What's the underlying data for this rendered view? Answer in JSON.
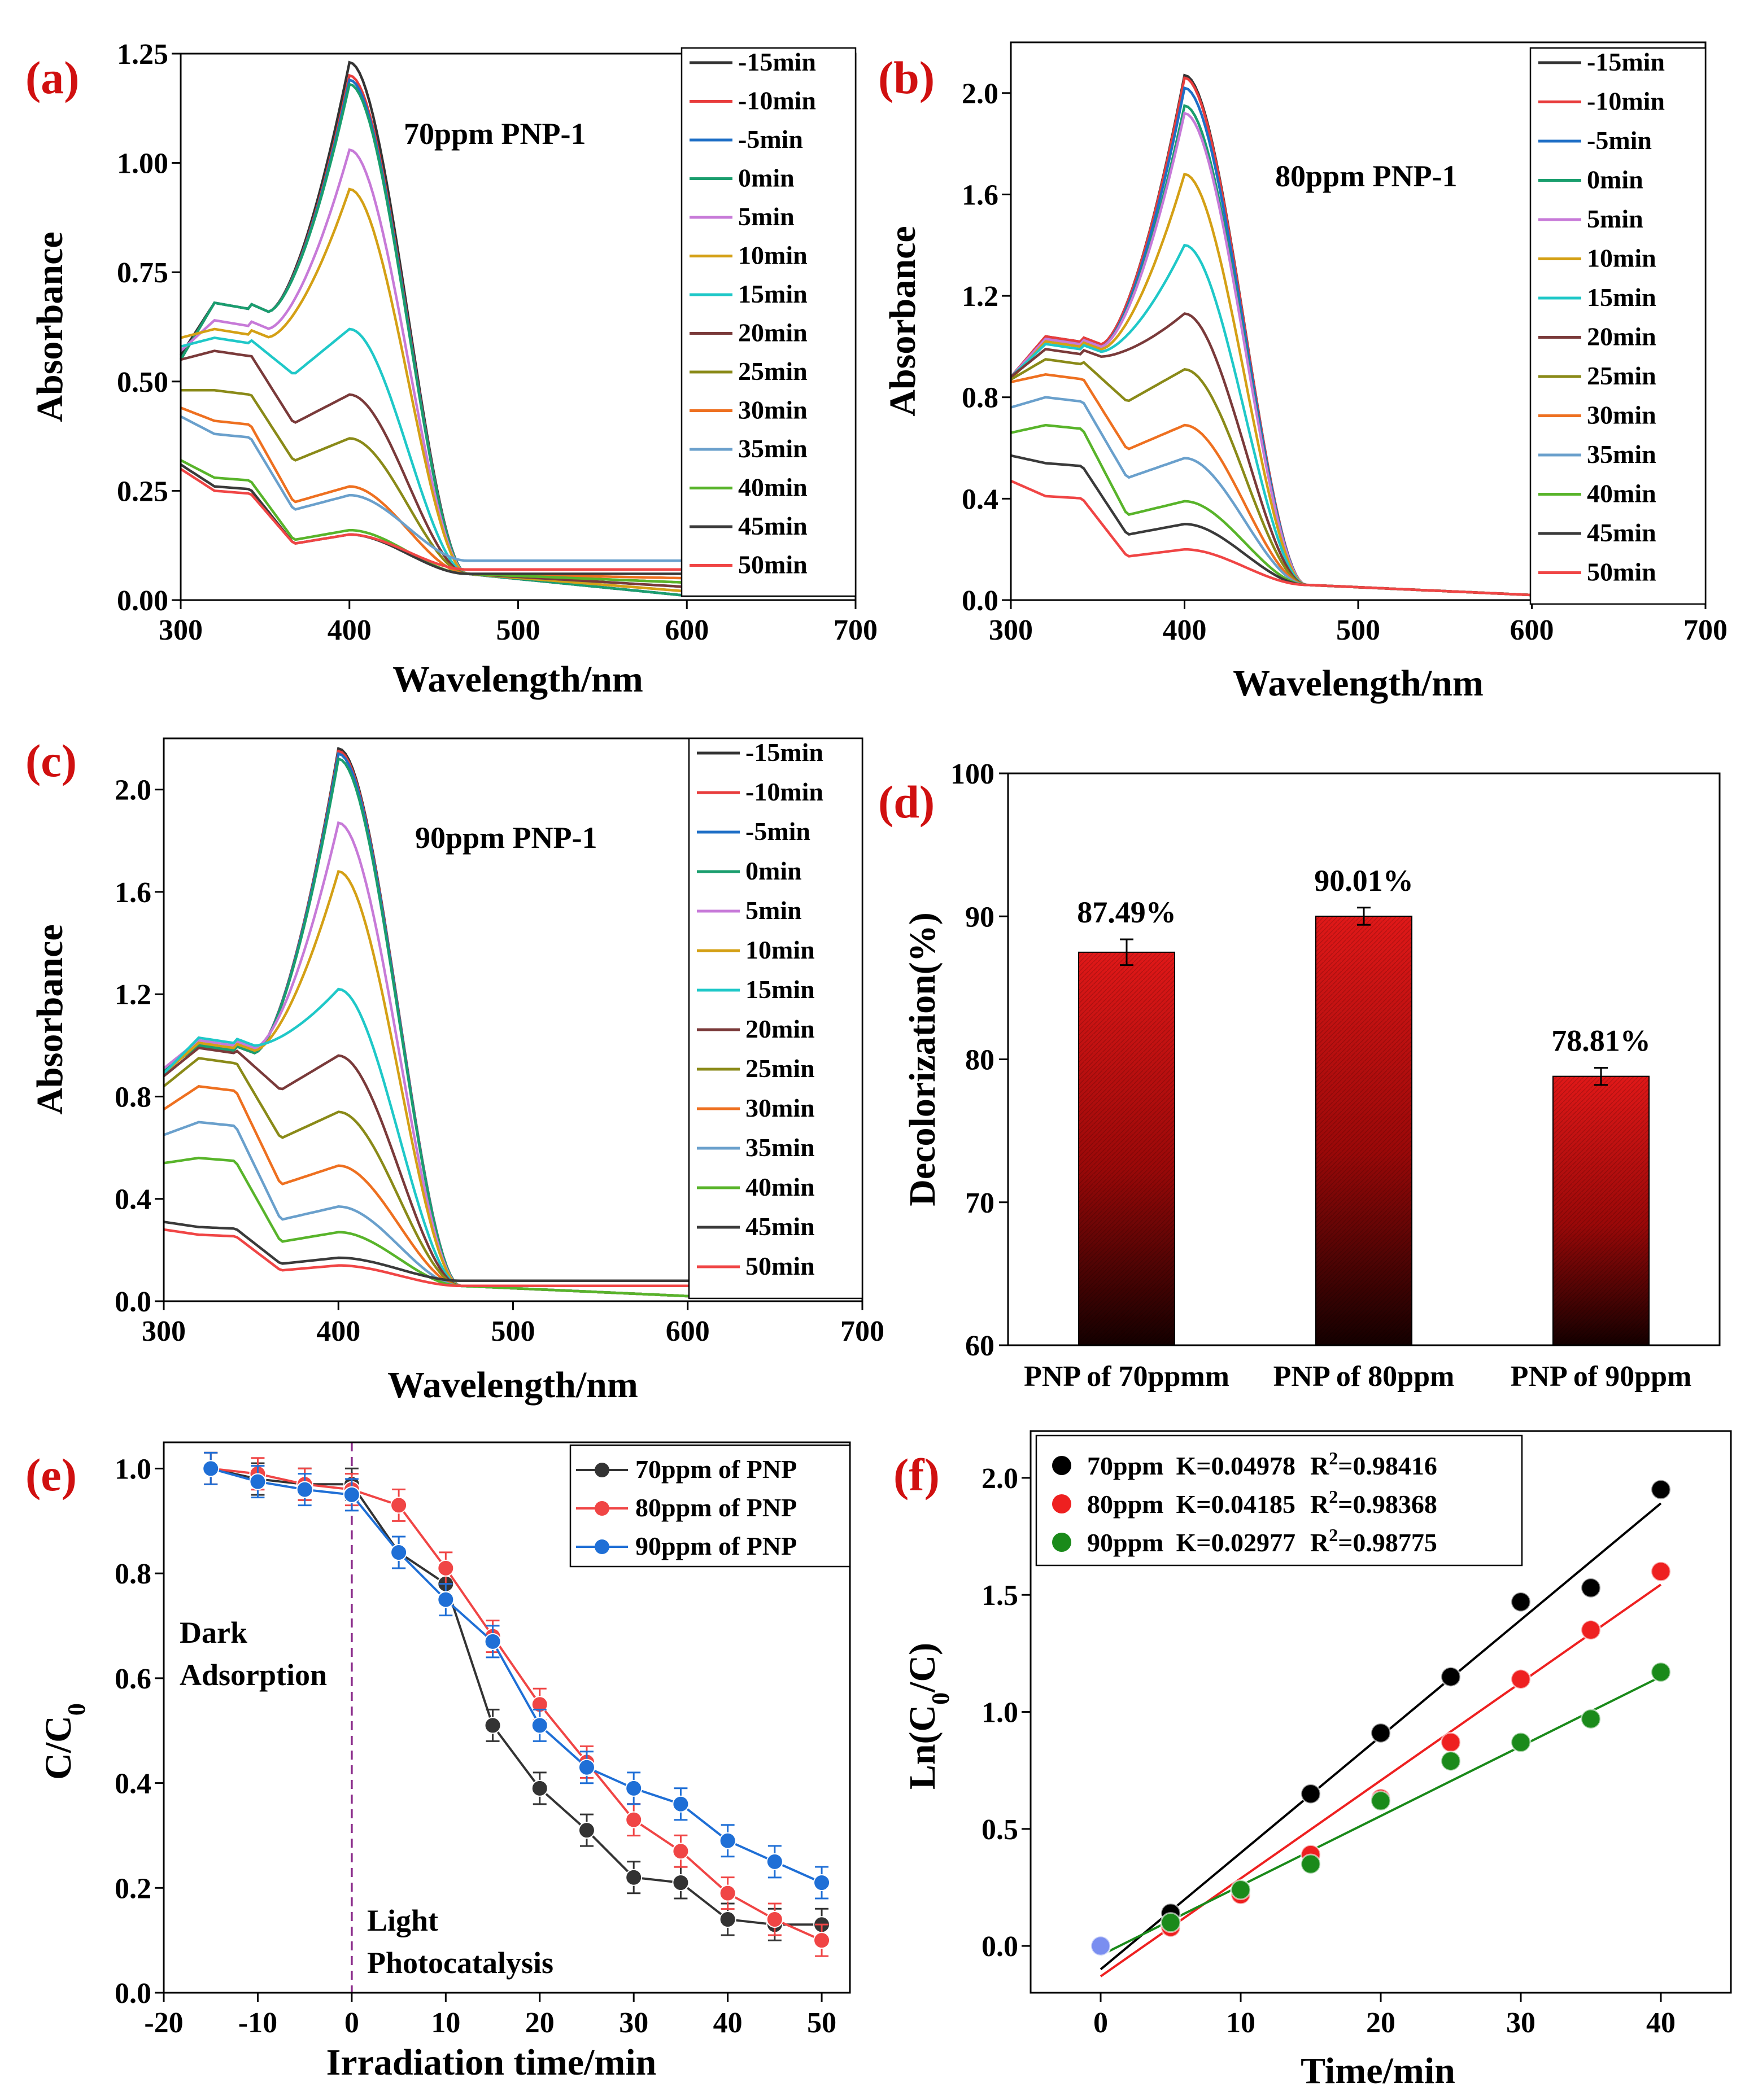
{
  "chart_data": [
    {
      "id": "a",
      "type": "line",
      "panel_label": "(a)",
      "annotation": "70ppm PNP-1",
      "xlabel": "Wavelength/nm",
      "ylabel": "Absorbance",
      "xlim": [
        300,
        700
      ],
      "ylim": [
        0,
        1.25
      ],
      "xticks": [
        300,
        400,
        500,
        600,
        700
      ],
      "yticks": [
        0.0,
        0.25,
        0.5,
        0.75,
        1.0,
        1.25
      ],
      "ytick_labels": [
        "0.00",
        "0.25",
        "0.50",
        "0.75",
        "1.00",
        "1.25"
      ],
      "legend": [
        "-15min",
        "-10min",
        "-5min",
        "0min",
        "5min",
        "10min",
        "15min",
        "20min",
        "25min",
        "30min",
        "35min",
        "40min",
        "45min",
        "50min"
      ],
      "series": [
        {
          "name": "-15min",
          "color": "#333333",
          "a300": 0.56,
          "s320": 0.68,
          "peak": 1.23,
          "tail": 0.01
        },
        {
          "name": "-10min",
          "color": "#e83c3c",
          "a300": 0.55,
          "s320": 0.68,
          "peak": 1.2,
          "tail": 0.01
        },
        {
          "name": "-5min",
          "color": "#1f6fc6",
          "a300": 0.55,
          "s320": 0.68,
          "peak": 1.19,
          "tail": 0.01
        },
        {
          "name": "0min",
          "color": "#1a9e6e",
          "a300": 0.55,
          "s320": 0.68,
          "peak": 1.18,
          "tail": 0.01
        },
        {
          "name": "5min",
          "color": "#c77ad8",
          "a300": 0.57,
          "s320": 0.64,
          "peak": 1.03,
          "tail": 0.02
        },
        {
          "name": "10min",
          "color": "#d4a015",
          "a300": 0.6,
          "s320": 0.62,
          "peak": 0.94,
          "tail": 0.02
        },
        {
          "name": "15min",
          "color": "#1fc8c8",
          "a300": 0.58,
          "s320": 0.6,
          "peak": 0.62,
          "tail": 0.03
        },
        {
          "name": "20min",
          "color": "#7a3a3a",
          "a300": 0.55,
          "s320": 0.57,
          "peak": 0.47,
          "tail": 0.03
        },
        {
          "name": "25min",
          "color": "#8a8a18",
          "a300": 0.48,
          "s320": 0.48,
          "peak": 0.37,
          "tail": 0.04
        },
        {
          "name": "30min",
          "color": "#ee7020",
          "a300": 0.44,
          "s320": 0.41,
          "peak": 0.26,
          "tail": 0.05
        },
        {
          "name": "35min",
          "color": "#6aa0cc",
          "a300": 0.42,
          "s320": 0.38,
          "peak": 0.24,
          "tail": 0.09
        },
        {
          "name": "40min",
          "color": "#58b42a",
          "a300": 0.32,
          "s320": 0.28,
          "peak": 0.16,
          "tail": 0.04
        },
        {
          "name": "45min",
          "color": "#3a3a3a",
          "a300": 0.31,
          "s320": 0.26,
          "peak": 0.15,
          "tail": 0.06
        },
        {
          "name": "50min",
          "color": "#f04545",
          "a300": 0.3,
          "s320": 0.25,
          "peak": 0.15,
          "tail": 0.07
        }
      ]
    },
    {
      "id": "b",
      "type": "line",
      "panel_label": "(b)",
      "annotation": "80ppm PNP-1",
      "xlabel": "Wavelength/nm",
      "ylabel": "Absorbance",
      "xlim": [
        300,
        700
      ],
      "ylim": [
        0,
        2.2
      ],
      "xticks": [
        300,
        400,
        500,
        600,
        700
      ],
      "yticks": [
        0.0,
        0.4,
        0.8,
        1.2,
        1.6,
        2.0
      ],
      "ytick_labels": [
        "0.0",
        "0.4",
        "0.8",
        "1.2",
        "1.6",
        "2.0"
      ],
      "legend": [
        "-15min",
        "-10min",
        "-5min",
        "0min",
        "5min",
        "10min",
        "15min",
        "20min",
        "25min",
        "30min",
        "35min",
        "40min",
        "45min",
        "50min"
      ],
      "series": [
        {
          "name": "-15min",
          "color": "#333333",
          "a300": 0.88,
          "s320": 1.04,
          "peak": 2.07,
          "tail": 0.02
        },
        {
          "name": "-10min",
          "color": "#e83c3c",
          "a300": 0.88,
          "s320": 1.04,
          "peak": 2.06,
          "tail": 0.02
        },
        {
          "name": "-5min",
          "color": "#1f6fc6",
          "a300": 0.88,
          "s320": 1.03,
          "peak": 2.02,
          "tail": 0.02
        },
        {
          "name": "0min",
          "color": "#1a9e6e",
          "a300": 0.87,
          "s320": 1.03,
          "peak": 1.95,
          "tail": 0.02
        },
        {
          "name": "5min",
          "color": "#c77ad8",
          "a300": 0.88,
          "s320": 1.03,
          "peak": 1.92,
          "tail": 0.02
        },
        {
          "name": "10min",
          "color": "#d4a015",
          "a300": 0.87,
          "s320": 1.02,
          "peak": 1.68,
          "tail": 0.02
        },
        {
          "name": "15min",
          "color": "#1fc8c8",
          "a300": 0.88,
          "s320": 1.01,
          "peak": 1.4,
          "tail": 0.02
        },
        {
          "name": "20min",
          "color": "#7a3a3a",
          "a300": 0.88,
          "s320": 0.99,
          "peak": 1.13,
          "tail": 0.02
        },
        {
          "name": "25min",
          "color": "#8a8a18",
          "a300": 0.87,
          "s320": 0.95,
          "peak": 0.91,
          "tail": 0.02
        },
        {
          "name": "30min",
          "color": "#ee7020",
          "a300": 0.86,
          "s320": 0.89,
          "peak": 0.69,
          "tail": 0.02
        },
        {
          "name": "35min",
          "color": "#6aa0cc",
          "a300": 0.76,
          "s320": 0.8,
          "peak": 0.56,
          "tail": 0.02
        },
        {
          "name": "40min",
          "color": "#58b42a",
          "a300": 0.66,
          "s320": 0.69,
          "peak": 0.39,
          "tail": 0.02
        },
        {
          "name": "45min",
          "color": "#3a3a3a",
          "a300": 0.57,
          "s320": 0.54,
          "peak": 0.3,
          "tail": 0.02
        },
        {
          "name": "50min",
          "color": "#f04545",
          "a300": 0.47,
          "s320": 0.41,
          "peak": 0.2,
          "tail": 0.02
        }
      ]
    },
    {
      "id": "c",
      "type": "line",
      "panel_label": "(c)",
      "annotation": "90ppm PNP-1",
      "xlabel": "Wavelength/nm",
      "ylabel": "Absorbance",
      "xlim": [
        300,
        700
      ],
      "ylim": [
        0,
        2.2
      ],
      "xticks": [
        300,
        400,
        500,
        600,
        700
      ],
      "yticks": [
        0.0,
        0.4,
        0.8,
        1.2,
        1.6,
        2.0
      ],
      "ytick_labels": [
        "0.0",
        "0.4",
        "0.8",
        "1.2",
        "1.6",
        "2.0"
      ],
      "legend": [
        "-15min",
        "-10min",
        "-5min",
        "0min",
        "5min",
        "10min",
        "15min",
        "20min",
        "25min",
        "30min",
        "35min",
        "40min",
        "45min",
        "50min"
      ],
      "series": [
        {
          "name": "-15min",
          "color": "#333333",
          "a300": 0.9,
          "s320": 1.0,
          "peak": 2.16,
          "tail": 0.02
        },
        {
          "name": "-10min",
          "color": "#e83c3c",
          "a300": 0.9,
          "s320": 1.0,
          "peak": 2.15,
          "tail": 0.02
        },
        {
          "name": "-5min",
          "color": "#1f6fc6",
          "a300": 0.9,
          "s320": 1.0,
          "peak": 2.14,
          "tail": 0.02
        },
        {
          "name": "0min",
          "color": "#1a9e6e",
          "a300": 0.9,
          "s320": 1.0,
          "peak": 2.12,
          "tail": 0.02
        },
        {
          "name": "5min",
          "color": "#c77ad8",
          "a300": 0.91,
          "s320": 1.02,
          "peak": 1.87,
          "tail": 0.02
        },
        {
          "name": "10min",
          "color": "#d4a015",
          "a300": 0.89,
          "s320": 1.01,
          "peak": 1.68,
          "tail": 0.02
        },
        {
          "name": "15min",
          "color": "#1fc8c8",
          "a300": 0.89,
          "s320": 1.03,
          "peak": 1.22,
          "tail": 0.02
        },
        {
          "name": "20min",
          "color": "#7a3a3a",
          "a300": 0.88,
          "s320": 0.99,
          "peak": 0.96,
          "tail": 0.02
        },
        {
          "name": "25min",
          "color": "#8a8a18",
          "a300": 0.84,
          "s320": 0.95,
          "peak": 0.74,
          "tail": 0.02
        },
        {
          "name": "30min",
          "color": "#ee7020",
          "a300": 0.75,
          "s320": 0.84,
          "peak": 0.53,
          "tail": 0.02
        },
        {
          "name": "35min",
          "color": "#6aa0cc",
          "a300": 0.65,
          "s320": 0.7,
          "peak": 0.37,
          "tail": 0.02
        },
        {
          "name": "40min",
          "color": "#58b42a",
          "a300": 0.54,
          "s320": 0.56,
          "peak": 0.27,
          "tail": 0.02
        },
        {
          "name": "45min",
          "color": "#3a3a3a",
          "a300": 0.31,
          "s320": 0.29,
          "peak": 0.17,
          "tail": 0.08
        },
        {
          "name": "50min",
          "color": "#f04545",
          "a300": 0.28,
          "s320": 0.26,
          "peak": 0.14,
          "tail": 0.06
        }
      ]
    },
    {
      "id": "d",
      "type": "bar",
      "panel_label": "(d)",
      "xlabel": "",
      "ylabel": "Decolorization(%)",
      "ylim": [
        60,
        100
      ],
      "yticks": [
        60,
        70,
        80,
        90,
        100
      ],
      "categories": [
        "PNP of 70ppmm",
        "PNP of  80ppm",
        "PNP of  90ppm"
      ],
      "values": [
        87.49,
        90.01,
        78.81
      ],
      "errors": [
        0.9,
        0.6,
        0.6
      ],
      "value_labels": [
        "87.49%",
        "90.01%",
        "78.81%"
      ],
      "bar_color_top": "#e01818",
      "bar_color_bottom": "#150000"
    },
    {
      "id": "e",
      "type": "scatter",
      "panel_label": "(e)",
      "xlabel": "Irradiation time/min",
      "ylabel": "C/C0",
      "xlim": [
        -20,
        53
      ],
      "ylim": [
        0,
        1.05
      ],
      "xticks": [
        -20,
        -10,
        0,
        10,
        20,
        30,
        40,
        50
      ],
      "yticks": [
        0.0,
        0.2,
        0.4,
        0.6,
        0.8,
        1.0
      ],
      "ytick_labels": [
        "0.0",
        "0.2",
        "0.4",
        "0.6",
        "0.8",
        "1.0"
      ],
      "x": [
        -15,
        -10,
        -5,
        0,
        5,
        10,
        15,
        20,
        25,
        30,
        35,
        40,
        45,
        50
      ],
      "divider_x": 0,
      "annotations": {
        "dark": [
          "Dark",
          "Adsorption"
        ],
        "light": [
          "Light",
          "Photocatalysis"
        ]
      },
      "legend": [
        "70ppm of PNP",
        "80ppm of PNP",
        "90ppm of PNP"
      ],
      "series": [
        {
          "name": "70ppm of PNP",
          "color": "#333333",
          "values": [
            1.0,
            0.98,
            0.97,
            0.97,
            0.84,
            0.78,
            0.51,
            0.39,
            0.31,
            0.22,
            0.21,
            0.14,
            0.13,
            0.13
          ]
        },
        {
          "name": "80ppm of PNP",
          "color": "#f04545",
          "values": [
            1.0,
            0.99,
            0.97,
            0.96,
            0.93,
            0.81,
            0.68,
            0.55,
            0.44,
            0.33,
            0.27,
            0.19,
            0.14,
            0.1
          ]
        },
        {
          "name": "90ppm of PNP",
          "color": "#1f6fd6",
          "values": [
            1.0,
            0.975,
            0.96,
            0.95,
            0.84,
            0.75,
            0.67,
            0.51,
            0.43,
            0.39,
            0.36,
            0.29,
            0.25,
            0.21
          ]
        }
      ]
    },
    {
      "id": "f",
      "type": "scatter",
      "panel_label": "(f)",
      "xlabel": "Time/min",
      "ylabel_prefix": "Ln(C",
      "ylabel_sub": "0",
      "ylabel_suffix": "/C)",
      "xlim": [
        -5,
        45
      ],
      "ylim": [
        -0.2,
        2.2
      ],
      "xticks": [
        0,
        10,
        20,
        30,
        40
      ],
      "yticks": [
        0.0,
        0.5,
        1.0,
        1.5,
        2.0
      ],
      "ytick_labels": [
        "0.0",
        "0.5",
        "1.0",
        "1.5",
        "2.0"
      ],
      "x": [
        0,
        5,
        10,
        15,
        20,
        25,
        30,
        35,
        40
      ],
      "series": [
        {
          "name": "70ppm",
          "k": "K=0.04978",
          "r2_label": "R",
          "r2_sup": "2",
          "r2_value": "=0.98416",
          "color": "#000000",
          "values": [
            0,
            0.14,
            0.23,
            0.65,
            0.91,
            1.15,
            1.47,
            1.53,
            1.95
          ],
          "fit": [
            0.04978,
            -0.1
          ]
        },
        {
          "name": "80ppm",
          "k": "K=0.04185",
          "r2_label": "R",
          "r2_sup": "2",
          "r2_value": "=0.98368",
          "color": "#ee2020",
          "values": [
            0,
            0.08,
            0.22,
            0.39,
            0.63,
            0.87,
            1.14,
            1.35,
            1.6
          ],
          "fit": [
            0.04185,
            -0.13
          ]
        },
        {
          "name": "90ppm",
          "k": "K=0.02977",
          "r2_label": "R",
          "r2_sup": "2",
          "r2_value": "=0.98775",
          "color": "#1a8a1a",
          "values": [
            0,
            0.1,
            0.24,
            0.35,
            0.62,
            0.79,
            0.87,
            0.97,
            1.17
          ],
          "fit": [
            0.02977,
            -0.04
          ]
        }
      ]
    }
  ]
}
